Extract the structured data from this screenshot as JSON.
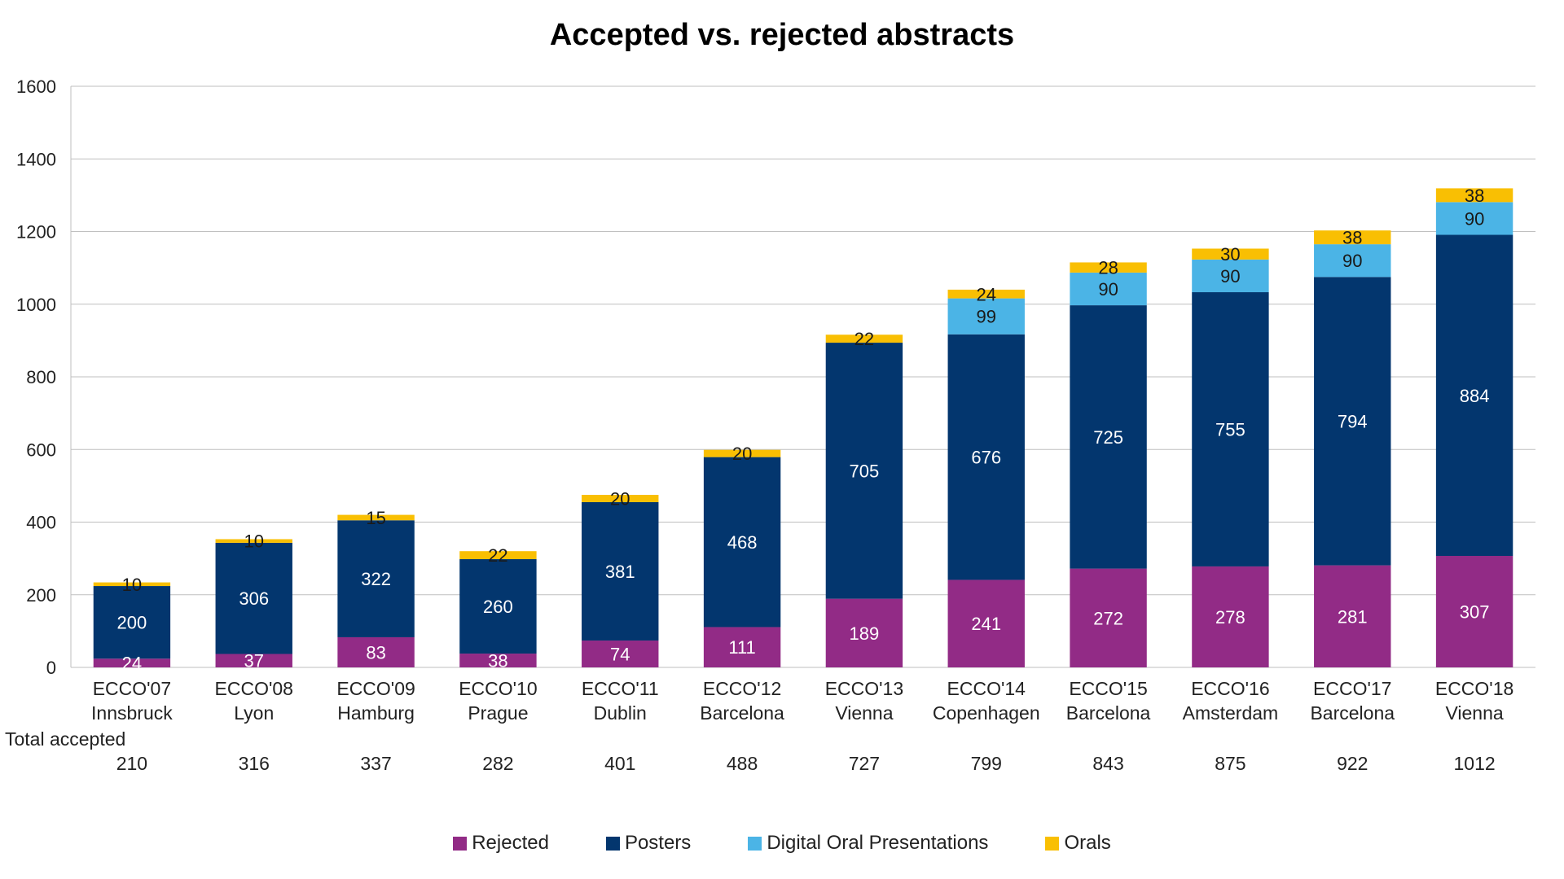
{
  "chart_data": {
    "type": "bar",
    "stacked": true,
    "title": "Accepted vs. rejected abstracts",
    "categories": [
      [
        "ECCO'07",
        "Innsbruck"
      ],
      [
        "ECCO'08",
        "Lyon"
      ],
      [
        "ECCO'09",
        "Hamburg"
      ],
      [
        "ECCO'10",
        "Prague"
      ],
      [
        "ECCO'11",
        "Dublin"
      ],
      [
        "ECCO'12",
        "Barcelona"
      ],
      [
        "ECCO'13",
        "Vienna"
      ],
      [
        "ECCO'14",
        "Copenhagen"
      ],
      [
        "ECCO'15",
        "Barcelona"
      ],
      [
        "ECCO'16",
        "Amsterdam"
      ],
      [
        "ECCO'17",
        "Barcelona"
      ],
      [
        "ECCO'18",
        "Vienna"
      ]
    ],
    "series": [
      {
        "name": "Rejected",
        "color": "#922B86",
        "label_color": "#ffffff",
        "values": [
          24,
          37,
          83,
          38,
          74,
          111,
          189,
          241,
          272,
          278,
          281,
          307
        ]
      },
      {
        "name": "Posters",
        "color": "#03366E",
        "label_color": "#ffffff",
        "values": [
          200,
          306,
          322,
          260,
          381,
          468,
          705,
          676,
          725,
          755,
          794,
          884
        ]
      },
      {
        "name": "Digital Oral Presentations",
        "color": "#4BB4E6",
        "label_color": "#1a1a1a",
        "values": [
          null,
          null,
          null,
          null,
          null,
          null,
          null,
          99,
          90,
          90,
          90,
          90
        ]
      },
      {
        "name": "Orals",
        "color": "#F9BF03",
        "label_color": "#1a1a1a",
        "values": [
          10,
          10,
          15,
          22,
          20,
          20,
          22,
          24,
          28,
          30,
          38,
          38
        ]
      }
    ],
    "ylim": [
      0,
      1600
    ],
    "yticks": [
      0,
      200,
      400,
      600,
      800,
      1000,
      1200,
      1400,
      1600
    ],
    "grid": true,
    "legend_position": "bottom",
    "table_row": {
      "label": "Total accepted",
      "values": [
        "210",
        "316",
        "337",
        "282",
        "401",
        "488",
        "727",
        "799",
        "843",
        "875",
        "922",
        "1012"
      ]
    }
  }
}
